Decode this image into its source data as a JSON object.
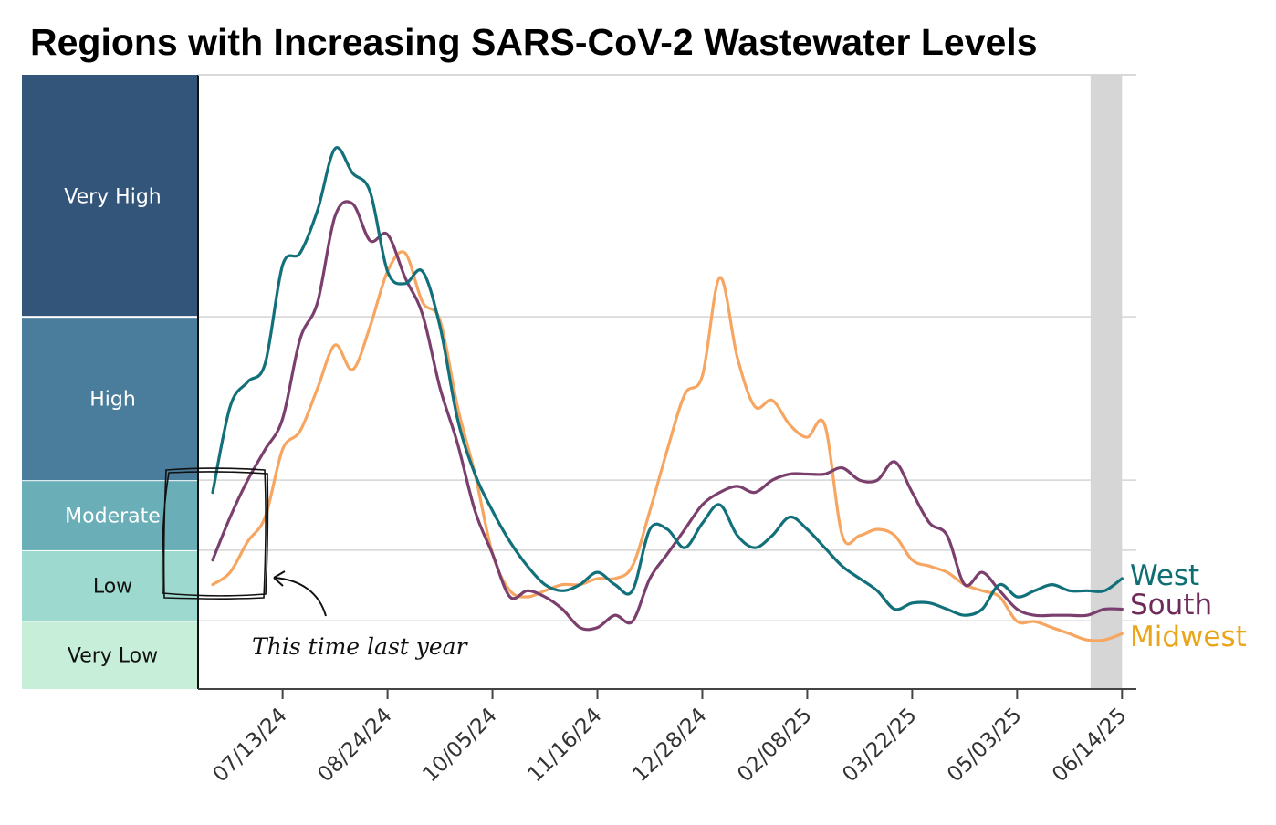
{
  "chart_data": {
    "type": "line",
    "title": "Regions with Increasing SARS-CoV-2 Wastewater Levels",
    "xlabel": "",
    "ylabel": "",
    "x_unit": "week index (weekly, 06/15/24 to 06/14/25)",
    "x": [
      0,
      1,
      2,
      3,
      4,
      5,
      6,
      7,
      8,
      9,
      10,
      11,
      12,
      13,
      14,
      15,
      16,
      17,
      18,
      19,
      20,
      21,
      22,
      23,
      24,
      25,
      26,
      27,
      28,
      29,
      30,
      31,
      32,
      33,
      34,
      35,
      36,
      37,
      38,
      39,
      40,
      41,
      42,
      43,
      44,
      45,
      46,
      47,
      48,
      49,
      50,
      51,
      52
    ],
    "xlim": [
      -0.85,
      52.8
    ],
    "ylim": [
      0,
      100
    ],
    "grid": true,
    "x_ticks": [
      {
        "index": 4,
        "label": "07/13/24"
      },
      {
        "index": 10,
        "label": "08/24/24"
      },
      {
        "index": 16,
        "label": "10/05/24"
      },
      {
        "index": 22,
        "label": "11/16/24"
      },
      {
        "index": 28,
        "label": "12/28/24"
      },
      {
        "index": 34,
        "label": "02/08/25"
      },
      {
        "index": 40,
        "label": "03/22/25"
      },
      {
        "index": 46,
        "label": "05/03/25"
      },
      {
        "index": 52,
        "label": "06/14/25"
      }
    ],
    "levels": [
      {
        "label": "Very Low",
        "from": 0,
        "to": 11.1,
        "color": "#c6eed9",
        "text_color": "#111111"
      },
      {
        "label": "Low",
        "from": 11.1,
        "to": 22.6,
        "color": "#9dd9cf",
        "text_color": "#111111"
      },
      {
        "label": "Moderate",
        "from": 22.6,
        "to": 34.0,
        "color": "#6aaeb8",
        "text_color": "#ffffff"
      },
      {
        "label": "High",
        "from": 34.0,
        "to": 60.6,
        "color": "#4a7d9b",
        "text_color": "#ffffff"
      },
      {
        "label": "Very High",
        "from": 60.6,
        "to": 100,
        "color": "#34557a",
        "text_color": "#ffffff"
      }
    ],
    "shaded_range": [
      50.2,
      52
    ],
    "series": [
      {
        "name": "West",
        "color": "#11707a",
        "label_color": "#0e6e73",
        "values": [
          32,
          46,
          50,
          53,
          69,
          71,
          78,
          88,
          84,
          81,
          68,
          66,
          68,
          59,
          44,
          35,
          29,
          24,
          20,
          17,
          16,
          17,
          19,
          17,
          16,
          26,
          26,
          23,
          27,
          30,
          25,
          23,
          25,
          28,
          26,
          23,
          20,
          18,
          16,
          13,
          14,
          14,
          13,
          12,
          13,
          17,
          15,
          16,
          17,
          16,
          16,
          16,
          18
        ]
      },
      {
        "name": "South",
        "color": "#7b3f6e",
        "label_color": "#6e2a58",
        "values": [
          21,
          28,
          34,
          39,
          44,
          57,
          63,
          77,
          79,
          73,
          74,
          67,
          61,
          49,
          40,
          29,
          22,
          15,
          16,
          15,
          13,
          10,
          10,
          12,
          11,
          18,
          22,
          26,
          30,
          32,
          33,
          32,
          34,
          35,
          35,
          35,
          36,
          34,
          34,
          37,
          32,
          27,
          25,
          17,
          19,
          16,
          13,
          12,
          12,
          12,
          12,
          13,
          13
        ]
      },
      {
        "name": "Midwest",
        "color": "#f6a660",
        "label_color": "#e9a61a",
        "values": [
          17,
          19,
          24,
          28,
          39,
          42,
          49,
          56,
          52,
          59,
          68,
          71,
          63,
          60,
          46,
          35,
          22,
          16,
          15,
          16,
          17,
          17,
          18,
          18,
          20,
          29,
          39,
          48,
          51,
          67,
          54,
          46,
          47,
          43,
          41,
          43,
          25,
          25,
          26,
          25,
          21,
          20,
          19,
          17,
          16,
          15,
          11,
          11,
          10,
          9,
          8,
          8,
          9
        ]
      }
    ],
    "annotations": [
      {
        "text": "This time last year",
        "target_index_range": [
          0,
          3
        ]
      }
    ]
  }
}
